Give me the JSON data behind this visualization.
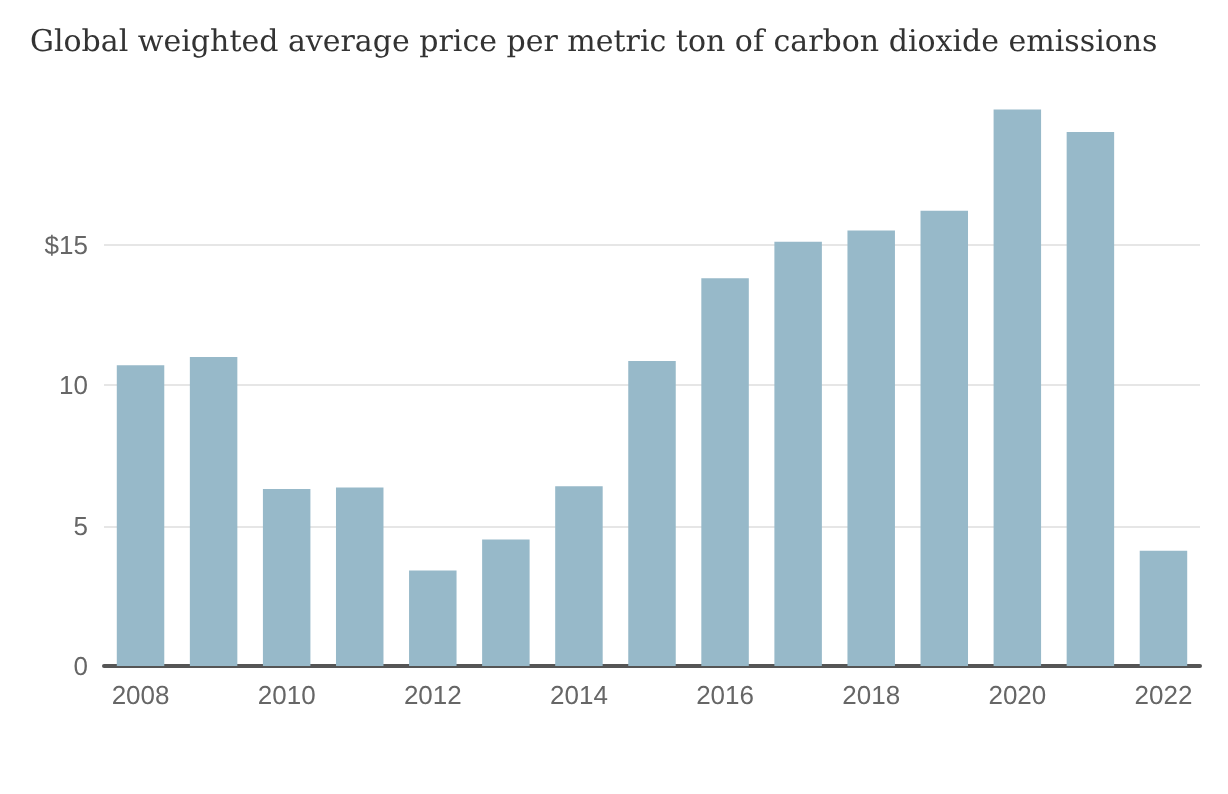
{
  "chart_data": {
    "type": "bar",
    "title": "Global weighted average price per metric ton of carbon dioxide emissions",
    "categories": [
      "2008",
      null,
      "2010",
      null,
      "2012",
      null,
      "2014",
      null,
      "2016",
      null,
      "2018",
      null,
      "2020",
      null,
      "2022"
    ],
    "values": [
      10.7,
      11.0,
      6.3,
      6.35,
      3.4,
      4.5,
      6.4,
      10.85,
      13.8,
      15.1,
      15.5,
      16.2,
      19.8,
      19.0,
      4.1
    ],
    "color": "#97b9c9",
    "ylim": [
      0,
      20
    ],
    "yticks": [
      0,
      5,
      10,
      {
        "value": 15,
        "label": "$15"
      }
    ],
    "grid": "y"
  }
}
